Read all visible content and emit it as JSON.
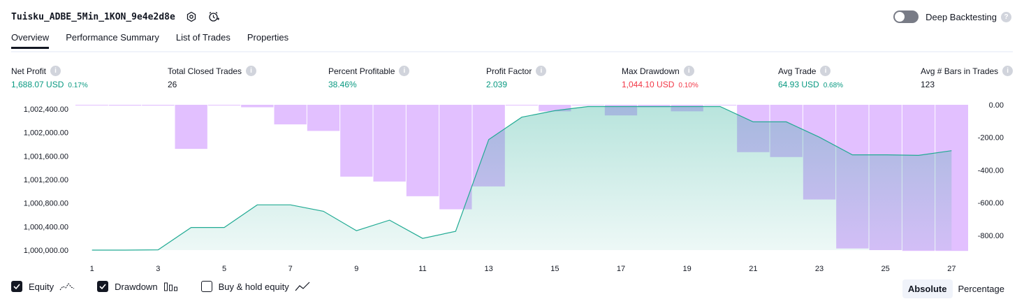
{
  "header": {
    "title": "Tuisku_ADBE_5Min_1KON_9e4e2d8e",
    "deep_label": "Deep Backtesting"
  },
  "tabs": [
    "Overview",
    "Performance Summary",
    "List of Trades",
    "Properties"
  ],
  "metrics": {
    "net_profit": {
      "label": "Net Profit",
      "value": "1,688.07 USD",
      "pct": "0.17%"
    },
    "total_closed_trades": {
      "label": "Total Closed Trades",
      "value": "26"
    },
    "percent_profitable": {
      "label": "Percent Profitable",
      "value": "38.46%"
    },
    "profit_factor": {
      "label": "Profit Factor",
      "value": "2.039"
    },
    "max_drawdown": {
      "label": "Max Drawdown",
      "value": "1,044.10 USD",
      "pct": "0.10%"
    },
    "avg_trade": {
      "label": "Avg Trade",
      "value": "64.93 USD",
      "pct": "0.68%"
    },
    "avg_bars": {
      "label": "Avg # Bars in Trades",
      "value": "123"
    }
  },
  "legend": {
    "equity": "Equity",
    "drawdown": "Drawdown",
    "buy_hold": "Buy & hold equity"
  },
  "modes": {
    "absolute": "Absolute",
    "percentage": "Percentage"
  },
  "chart_data": {
    "type": "line",
    "x": [
      1,
      2,
      3,
      4,
      5,
      6,
      7,
      8,
      9,
      10,
      11,
      12,
      13,
      14,
      15,
      16,
      17,
      18,
      19,
      20,
      21,
      22,
      23,
      24,
      25,
      26,
      27
    ],
    "x_ticks": [
      "1",
      "3",
      "5",
      "7",
      "9",
      "11",
      "13",
      "15",
      "17",
      "19",
      "21",
      "23",
      "25",
      "27"
    ],
    "series": [
      {
        "name": "Equity",
        "axis": "left",
        "color": "#22ab94",
        "values": [
          1000000,
          1000000,
          1000005,
          1000385,
          1000385,
          1000770,
          1000770,
          1000660,
          1000330,
          1000510,
          1000200,
          1000320,
          1001880,
          1002260,
          1002370,
          1002440,
          1002440,
          1002440,
          1002440,
          1002440,
          1002180,
          1002180,
          1001920,
          1001620,
          1001620,
          1001610,
          1001690
        ]
      },
      {
        "name": "Drawdown",
        "axis": "right",
        "color": "#d6a5ff",
        "values": [
          0,
          -5,
          -5,
          -270,
          0,
          -15,
          -120,
          -160,
          -440,
          -470,
          -560,
          -640,
          -500,
          0,
          -40,
          0,
          -65,
          -15,
          -40,
          0,
          -290,
          -320,
          -580,
          -880,
          -890,
          -895,
          -895
        ]
      }
    ],
    "left_ticks": [
      "1,000,000.00",
      "1,000,400.00",
      "1,000,800.00",
      "1,001,200.00",
      "1,001,600.00",
      "1,002,000.00",
      "1,002,400.00"
    ],
    "right_ticks": [
      "0.00",
      "-200.00",
      "-400.00",
      "-600.00",
      "-800.00"
    ],
    "ylim_left": [
      1000000,
      1002470
    ],
    "ylim_right": [
      -890,
      0
    ]
  }
}
